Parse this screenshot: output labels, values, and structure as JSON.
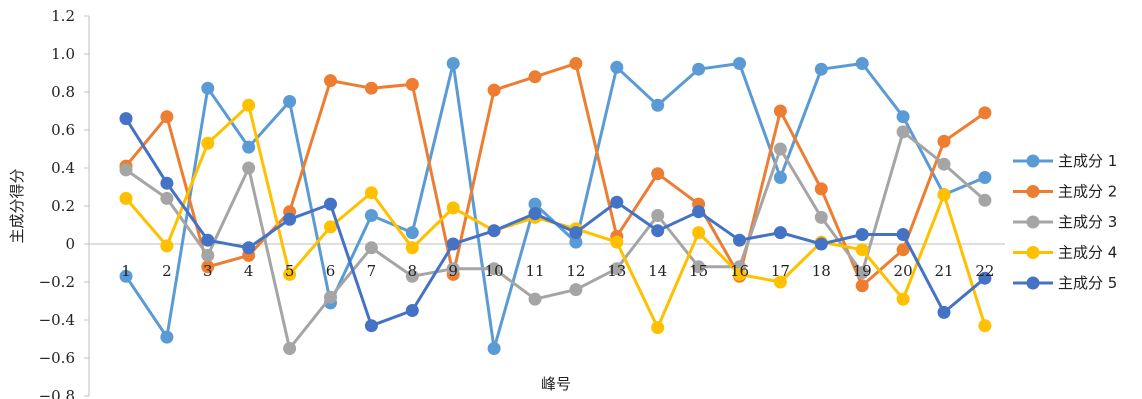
{
  "chart_data": {
    "type": "line",
    "xlabel": "峰号",
    "ylabel": "主成分得分",
    "ylim": [
      -0.8,
      1.2
    ],
    "yticks": [
      "1.2",
      "1.0",
      "0.8",
      "0.6",
      "0.4",
      "0.2",
      "0",
      "−0.2",
      "−0.4",
      "−0.6",
      "−0.8"
    ],
    "categories": [
      "1",
      "2",
      "3",
      "4",
      "5",
      "6",
      "7",
      "8",
      "9",
      "10",
      "11",
      "12",
      "13",
      "14",
      "15",
      "16",
      "17",
      "18",
      "19",
      "20",
      "21",
      "22"
    ],
    "legend_position": "right",
    "grid": false,
    "series": [
      {
        "name": "主成分 1",
        "color": "#5B9BD5",
        "values": [
          -0.17,
          -0.49,
          0.82,
          0.51,
          0.75,
          -0.31,
          0.15,
          0.06,
          0.95,
          -0.55,
          0.21,
          0.01,
          0.93,
          0.73,
          0.92,
          0.95,
          0.35,
          0.92,
          0.95,
          0.67,
          0.26,
          0.35
        ]
      },
      {
        "name": "主成分 2",
        "color": "#ED7D31",
        "values": [
          0.41,
          0.67,
          -0.12,
          -0.06,
          0.17,
          0.86,
          0.82,
          0.84,
          -0.16,
          0.81,
          0.88,
          0.95,
          0.04,
          0.37,
          0.21,
          -0.17,
          0.7,
          0.29,
          -0.22,
          -0.03,
          0.54,
          0.69
        ]
      },
      {
        "name": "主成分 3",
        "color": "#A5A5A5",
        "values": [
          0.39,
          0.24,
          -0.06,
          0.4,
          -0.55,
          -0.28,
          -0.02,
          -0.17,
          -0.13,
          -0.13,
          -0.29,
          -0.24,
          -0.13,
          0.15,
          -0.12,
          -0.12,
          0.5,
          0.14,
          -0.15,
          0.59,
          0.42,
          0.23
        ]
      },
      {
        "name": "主成分 4",
        "color": "#FFC000",
        "values": [
          0.24,
          -0.01,
          0.53,
          0.73,
          -0.16,
          0.09,
          0.27,
          -0.02,
          0.19,
          0.07,
          0.14,
          0.08,
          0.01,
          -0.44,
          0.06,
          -0.16,
          -0.2,
          0.01,
          -0.03,
          -0.29,
          0.26,
          -0.43
        ]
      },
      {
        "name": "主成分 5",
        "color": "#4472C4",
        "values": [
          0.66,
          0.32,
          0.02,
          -0.02,
          0.13,
          0.21,
          -0.43,
          -0.35,
          0.0,
          0.07,
          0.16,
          0.06,
          0.22,
          0.07,
          0.17,
          0.02,
          0.06,
          0.0,
          0.05,
          0.05,
          -0.36,
          -0.18
        ]
      }
    ]
  }
}
